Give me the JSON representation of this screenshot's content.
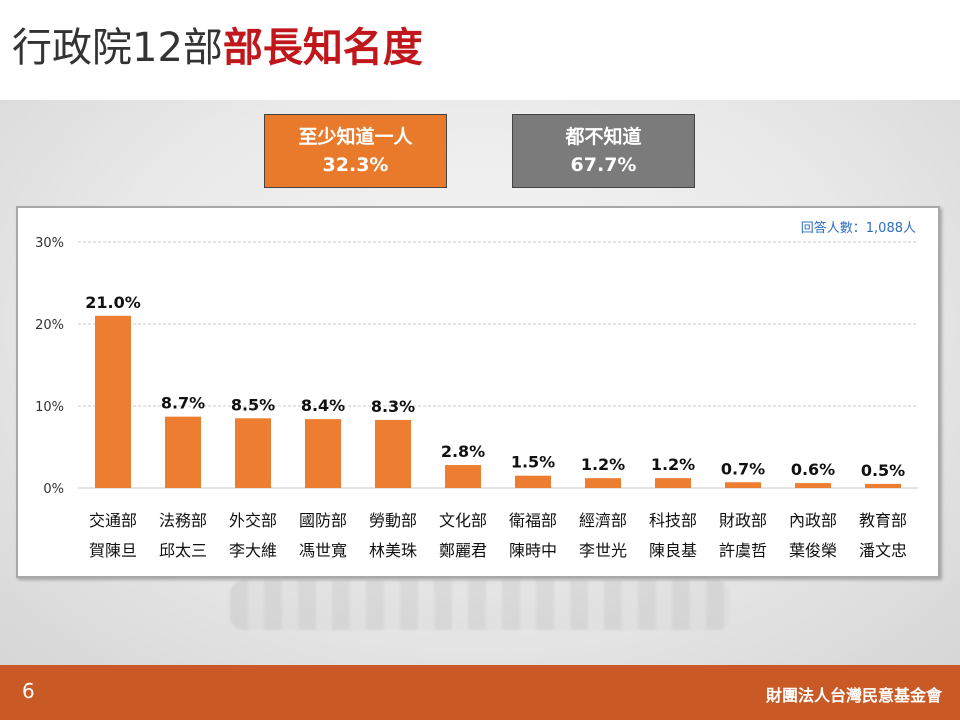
{
  "title": {
    "prefix": "行政院12部",
    "highlight": "部長知名度"
  },
  "summary": {
    "know": {
      "label": "至少知道一人",
      "value": "32.3%"
    },
    "unknown": {
      "label": "都不知道",
      "value": "67.7%"
    }
  },
  "respondents": "回答人數：1,088人",
  "colors": {
    "bar": "#ed7d31",
    "accent_title": "#c0171c",
    "footer": "#c95a26"
  },
  "chart_data": {
    "type": "bar",
    "categories": [
      "交通部",
      "法務部",
      "外交部",
      "國防部",
      "勞動部",
      "文化部",
      "衛福部",
      "經濟部",
      "科技部",
      "財政部",
      "內政部",
      "教育部"
    ],
    "ministers": [
      "賀陳旦",
      "邱太三",
      "李大維",
      "馮世寬",
      "林美珠",
      "鄭麗君",
      "陳時中",
      "李世光",
      "陳良基",
      "許虞哲",
      "葉俊榮",
      "潘文忠"
    ],
    "values": [
      21.0,
      8.7,
      8.5,
      8.4,
      8.3,
      2.8,
      1.5,
      1.2,
      1.2,
      0.7,
      0.6,
      0.5
    ],
    "value_labels": [
      "21.0%",
      "8.7%",
      "8.5%",
      "8.4%",
      "8.3%",
      "2.8%",
      "1.5%",
      "1.2%",
      "1.2%",
      "0.7%",
      "0.6%",
      "0.5%"
    ],
    "ylim": [
      0,
      30
    ],
    "yticks": [
      0,
      10,
      20,
      30
    ],
    "ytick_labels": [
      "0%",
      "10%",
      "20%",
      "30%"
    ],
    "grid": true,
    "title": "",
    "xlabel": "",
    "ylabel": ""
  },
  "footer": {
    "page": "6",
    "org": "財團法人台灣民意基金會"
  }
}
